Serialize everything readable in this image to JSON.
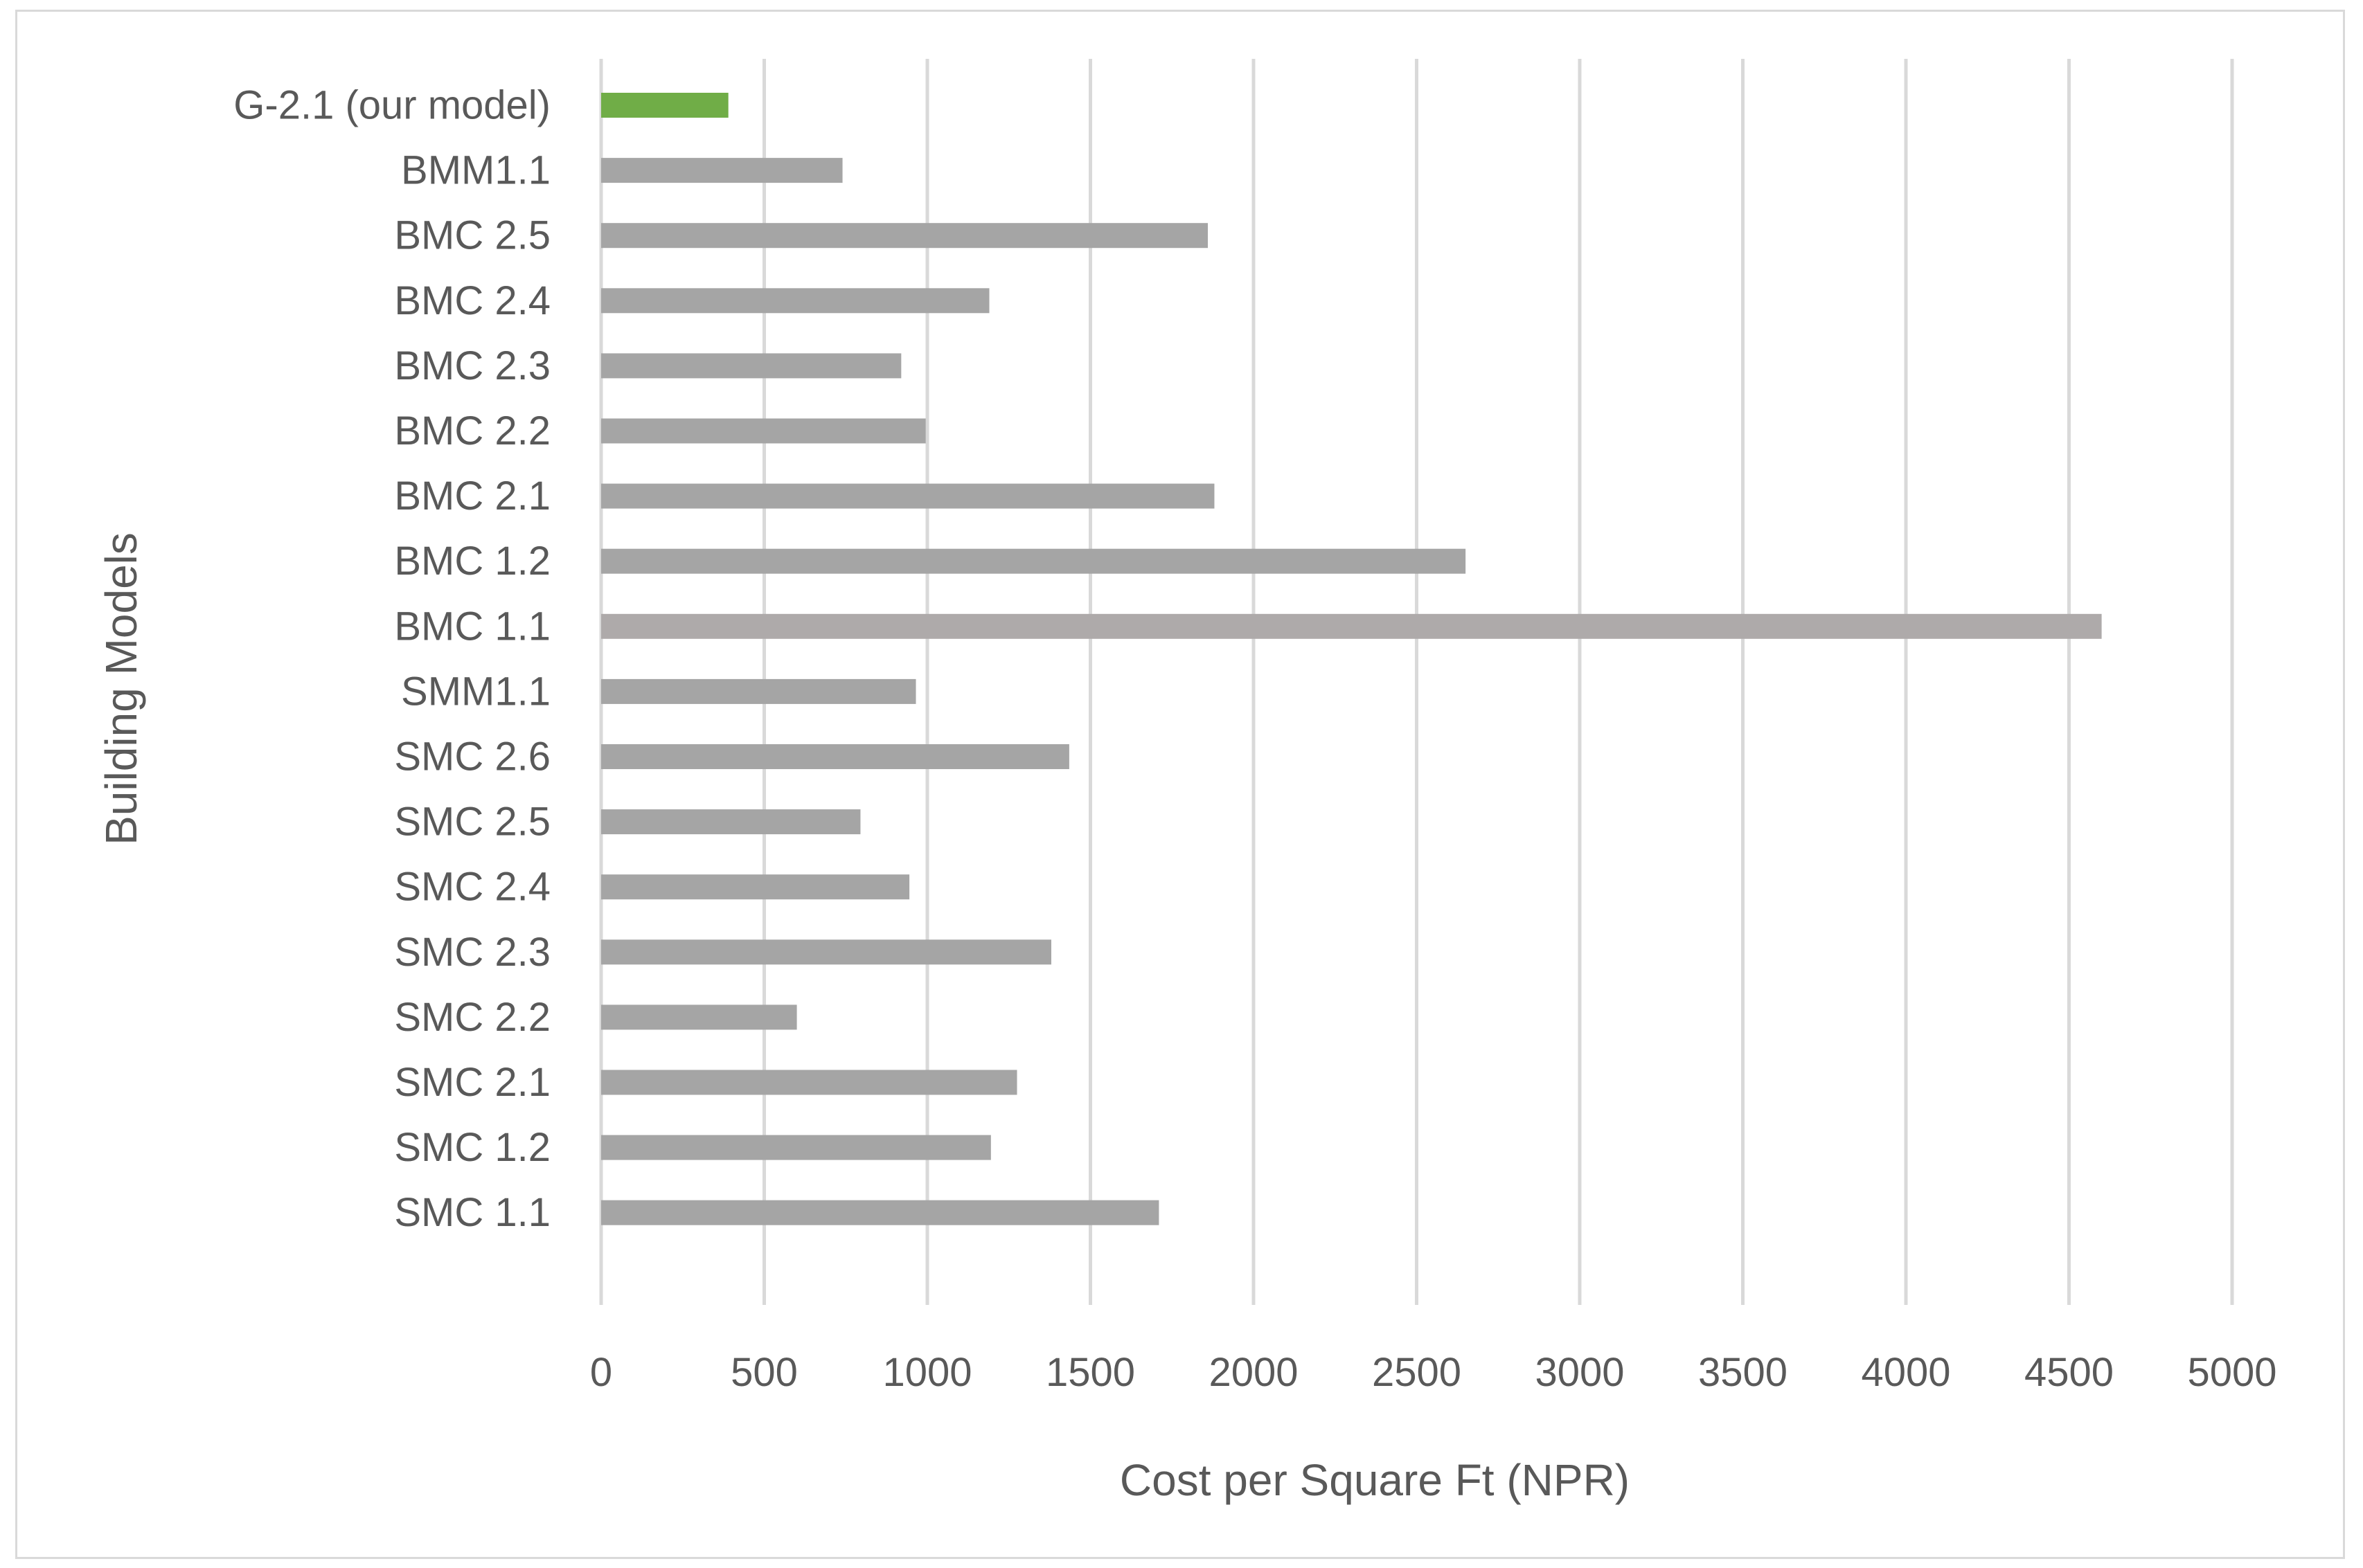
{
  "chart_data": {
    "type": "bar",
    "orientation": "horizontal",
    "xlabel": "Cost per Square Ft (NPR)",
    "ylabel": "Building Models",
    "xlim": [
      0,
      5000
    ],
    "xticks": [
      "0",
      "500",
      "1000",
      "1500",
      "2000",
      "2500",
      "3000",
      "3500",
      "4000",
      "4500",
      "5000"
    ],
    "grid": "vertical",
    "categories": [
      "G-2.1 (our model)",
      "BMM1.1",
      "BMC 2.5",
      "BMC 2.4",
      "BMC 2.3",
      "BMC 2.2",
      "BMC 2.1",
      "BMC 1.2",
      "BMC 1.1",
      "SMM1.1",
      "SMC 2.6",
      "SMC 2.5",
      "SMC 2.4",
      "SMC 2.3",
      "SMC 2.2",
      "SMC 2.1",
      "SMC 1.2",
      "SMC 1.1"
    ],
    "values": [
      390,
      740,
      1860,
      1190,
      920,
      995,
      1880,
      2650,
      4600,
      965,
      1435,
      795,
      945,
      1380,
      600,
      1275,
      1195,
      1710
    ],
    "bar_colors": [
      "#70ad47",
      "#a5a5a5",
      "#a5a5a5",
      "#a5a5a5",
      "#a5a5a5",
      "#a5a5a5",
      "#a5a5a5",
      "#a5a5a5",
      "#aeaaaa",
      "#a5a5a5",
      "#a5a5a5",
      "#a5a5a5",
      "#a5a5a5",
      "#a5a5a5",
      "#a5a5a5",
      "#a5a5a5",
      "#a5a5a5",
      "#a5a5a5"
    ]
  },
  "colors": {
    "gridline": "#d9d9d9",
    "text": "#595959",
    "highlight": "#70ad47",
    "bar": "#a5a5a5"
  }
}
